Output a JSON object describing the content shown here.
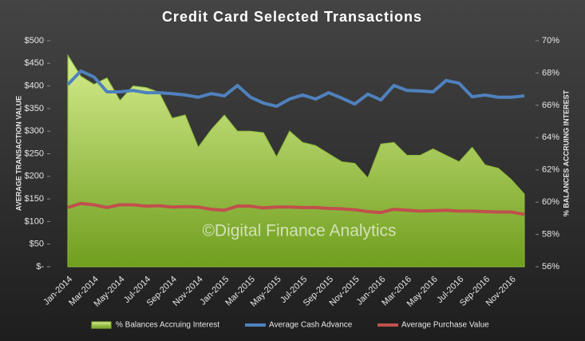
{
  "chart_data": {
    "type": "combo",
    "title": "Credit Card Selected Transactions",
    "y_label": "AVERAGE TRANSACTION VALUE",
    "y2_label": "% BALANCES ACCRUING INTEREST",
    "annotation": "©Digital Finance Analytics",
    "legend": "bottom",
    "categories": [
      "Jan-2014",
      null,
      "Mar-2014",
      null,
      "May-2014",
      null,
      "Jul-2014",
      null,
      "Sep-2014",
      null,
      "Nov-2014",
      null,
      "Jan-2015",
      null,
      "Mar-2015",
      null,
      "May-2015",
      null,
      "Jul-2015",
      null,
      "Sep-2015",
      null,
      "Nov-2015",
      null,
      "Jan-2016",
      null,
      "Mar-2016",
      null,
      "May-2016",
      null,
      "Jul-2016",
      null,
      "Sep-2016",
      null,
      "Nov-2016",
      null
    ],
    "series": [
      {
        "name": "% Balances Accruing Interest",
        "type": "area",
        "axis": "y2",
        "color": "#8fbc3a",
        "values": [
          69.1,
          67.8,
          67.3,
          67.7,
          66.3,
          67.2,
          67.1,
          66.8,
          65.2,
          65.4,
          63.4,
          64.5,
          65.4,
          64.4,
          64.4,
          64.3,
          62.8,
          64.4,
          63.7,
          63.5,
          63.0,
          62.5,
          62.4,
          61.5,
          63.6,
          63.7,
          62.9,
          62.9,
          63.3,
          62.9,
          62.5,
          63.4,
          62.3,
          62.1,
          61.4,
          60.5
        ]
      },
      {
        "name": "Average Cash Advance",
        "type": "line",
        "axis": "y",
        "color": "#4f81bd",
        "values": [
          403,
          433,
          420,
          387,
          387,
          390,
          385,
          385,
          383,
          380,
          375,
          383,
          378,
          401,
          375,
          362,
          355,
          371,
          380,
          371,
          385,
          373,
          360,
          382,
          369,
          401,
          390,
          389,
          387,
          412,
          406,
          376,
          380,
          375,
          375,
          378
        ]
      },
      {
        "name": "Average Purchase Value",
        "type": "line",
        "axis": "y",
        "color": "#c0504d",
        "values": [
          131,
          140,
          137,
          131,
          137,
          137,
          134,
          135,
          132,
          133,
          132,
          127,
          125,
          134,
          134,
          130,
          132,
          132,
          131,
          131,
          129,
          128,
          126,
          122,
          120,
          127,
          125,
          123,
          124,
          125,
          123,
          123,
          122,
          121,
          121,
          116
        ]
      }
    ],
    "ylim": [
      0,
      500
    ],
    "yticks": [
      {
        "value": 0,
        "label": "$-"
      },
      {
        "value": 50,
        "label": "$50"
      },
      {
        "value": 100,
        "label": "$100"
      },
      {
        "value": 150,
        "label": "$150"
      },
      {
        "value": 200,
        "label": "$200"
      },
      {
        "value": 250,
        "label": "$250"
      },
      {
        "value": 300,
        "label": "$300"
      },
      {
        "value": 350,
        "label": "$350"
      },
      {
        "value": 400,
        "label": "$400"
      },
      {
        "value": 450,
        "label": "$450"
      },
      {
        "value": 500,
        "label": "$500"
      }
    ],
    "y2lim": [
      56,
      70
    ],
    "y2ticks": [
      {
        "value": 56,
        "label": "56%"
      },
      {
        "value": 58,
        "label": "58%"
      },
      {
        "value": 60,
        "label": "60%"
      },
      {
        "value": 62,
        "label": "62%"
      },
      {
        "value": 64,
        "label": "64%"
      },
      {
        "value": 66,
        "label": "66%"
      },
      {
        "value": 68,
        "label": "68%"
      },
      {
        "value": 70,
        "label": "70%"
      }
    ]
  }
}
